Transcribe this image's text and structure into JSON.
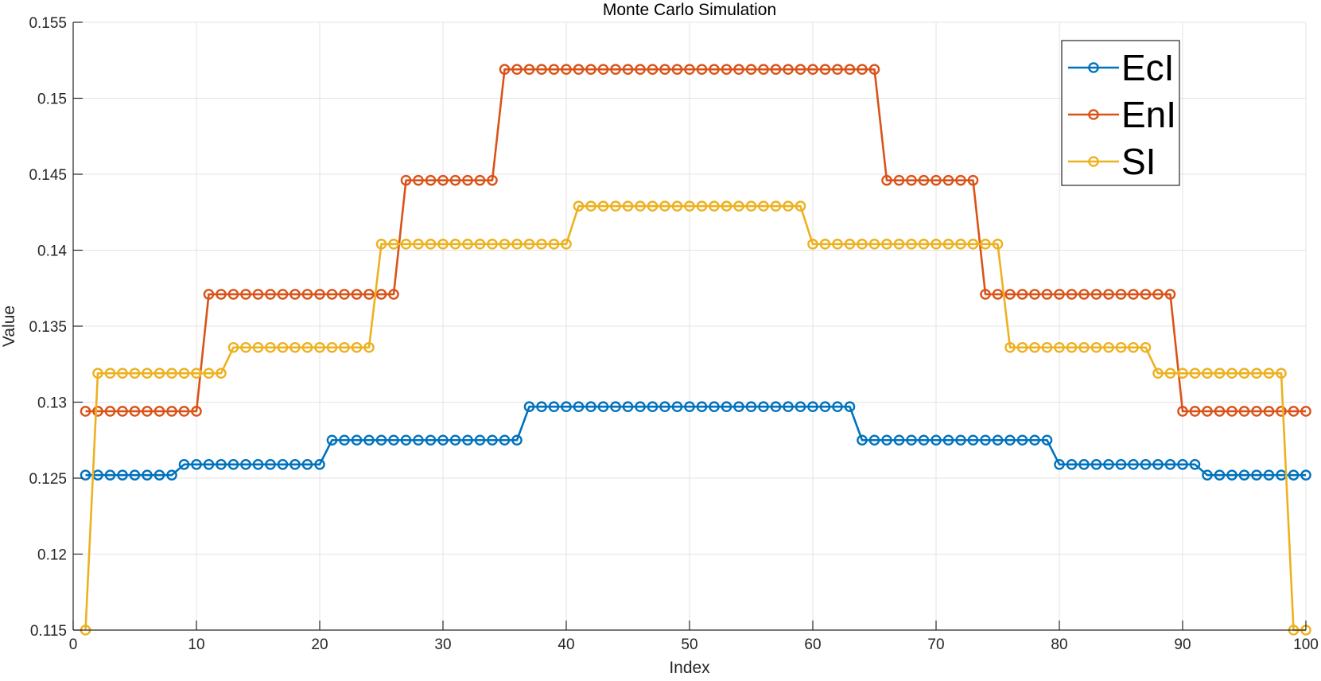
{
  "chart_data": {
    "type": "line",
    "title": "Monte Carlo Simulation",
    "xlabel": "Index",
    "ylabel": "Value",
    "xlim": [
      0,
      100
    ],
    "ylim": [
      0.115,
      0.155
    ],
    "xticks": [
      0,
      10,
      20,
      30,
      40,
      50,
      60,
      70,
      80,
      90,
      100
    ],
    "yticks": [
      0.115,
      0.12,
      0.125,
      0.13,
      0.135,
      0.14,
      0.145,
      0.15,
      0.155
    ],
    "grid": true,
    "legend_position": "top-right",
    "marker": "circle",
    "series": [
      {
        "name": "EcI",
        "color": "#0072BD",
        "segments": [
          {
            "from": 1,
            "to": 8,
            "value": 0.1252
          },
          {
            "from": 9,
            "to": 20,
            "value": 0.1259
          },
          {
            "from": 21,
            "to": 36,
            "value": 0.1275
          },
          {
            "from": 37,
            "to": 63,
            "value": 0.1297
          },
          {
            "from": 64,
            "to": 79,
            "value": 0.1275
          },
          {
            "from": 80,
            "to": 91,
            "value": 0.1259
          },
          {
            "from": 92,
            "to": 100,
            "value": 0.1252
          }
        ]
      },
      {
        "name": "EnI",
        "color": "#D95319",
        "segments": [
          {
            "from": 1,
            "to": 10,
            "value": 0.1294
          },
          {
            "from": 11,
            "to": 26,
            "value": 0.1371
          },
          {
            "from": 27,
            "to": 34,
            "value": 0.1446
          },
          {
            "from": 35,
            "to": 65,
            "value": 0.1519
          },
          {
            "from": 66,
            "to": 73,
            "value": 0.1446
          },
          {
            "from": 74,
            "to": 89,
            "value": 0.1371
          },
          {
            "from": 90,
            "to": 100,
            "value": 0.1294
          }
        ]
      },
      {
        "name": "SI",
        "color": "#EDB120",
        "segments": [
          {
            "from": 1,
            "to": 1,
            "value": 0.115
          },
          {
            "from": 2,
            "to": 12,
            "value": 0.1319
          },
          {
            "from": 13,
            "to": 24,
            "value": 0.1336
          },
          {
            "from": 25,
            "to": 40,
            "value": 0.1404
          },
          {
            "from": 41,
            "to": 59,
            "value": 0.1429
          },
          {
            "from": 60,
            "to": 75,
            "value": 0.1404
          },
          {
            "from": 76,
            "to": 87,
            "value": 0.1336
          },
          {
            "from": 88,
            "to": 98,
            "value": 0.1319
          },
          {
            "from": 99,
            "to": 100,
            "value": 0.115
          }
        ]
      }
    ]
  }
}
